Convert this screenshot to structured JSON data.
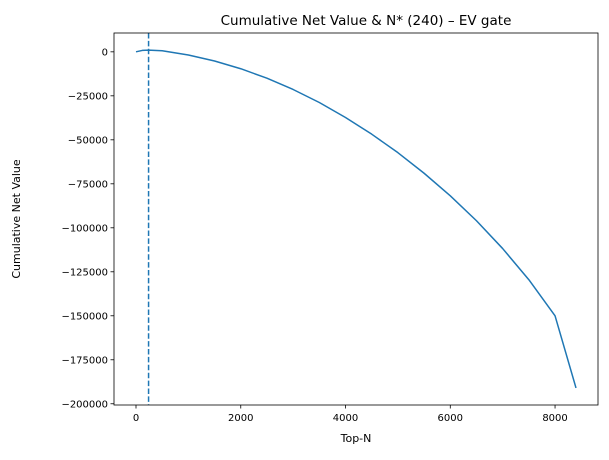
{
  "chart_data": {
    "type": "line",
    "title": "Cumulative Net Value & N* (240) – EV gate",
    "xlabel": "Top-N",
    "ylabel": "Cumulative Net Value",
    "xlim": [
      -420,
      8820
    ],
    "ylim": [
      -200700,
      10700
    ],
    "xticks": [
      0,
      2000,
      4000,
      6000,
      8000
    ],
    "xtick_labels": [
      "0",
      "2000",
      "4000",
      "6000",
      "8000"
    ],
    "yticks": [
      0,
      -25000,
      -50000,
      -75000,
      -100000,
      -125000,
      -150000,
      -175000,
      -200000
    ],
    "ytick_labels": [
      "0",
      "−25000",
      "−50000",
      "−75000",
      "−100000",
      "−125000",
      "−150000",
      "−175000",
      "−200000"
    ],
    "grid": false,
    "reference_lines": [
      {
        "orientation": "vertical",
        "x": 240,
        "style": "dashed",
        "color": "#1f77b4"
      }
    ],
    "series": [
      {
        "color": "#1f77b4",
        "x": [
          0,
          120,
          240,
          500,
          1000,
          1500,
          2000,
          2500,
          3000,
          3500,
          4000,
          4500,
          5000,
          5500,
          6000,
          6500,
          7000,
          7500,
          8000,
          8400
        ],
        "y": [
          0,
          800,
          1000,
          600,
          -1800,
          -5200,
          -9600,
          -15000,
          -21400,
          -28800,
          -37300,
          -46800,
          -57300,
          -69000,
          -81800,
          -96000,
          -111800,
          -129500,
          -150000,
          -191000
        ]
      }
    ]
  }
}
